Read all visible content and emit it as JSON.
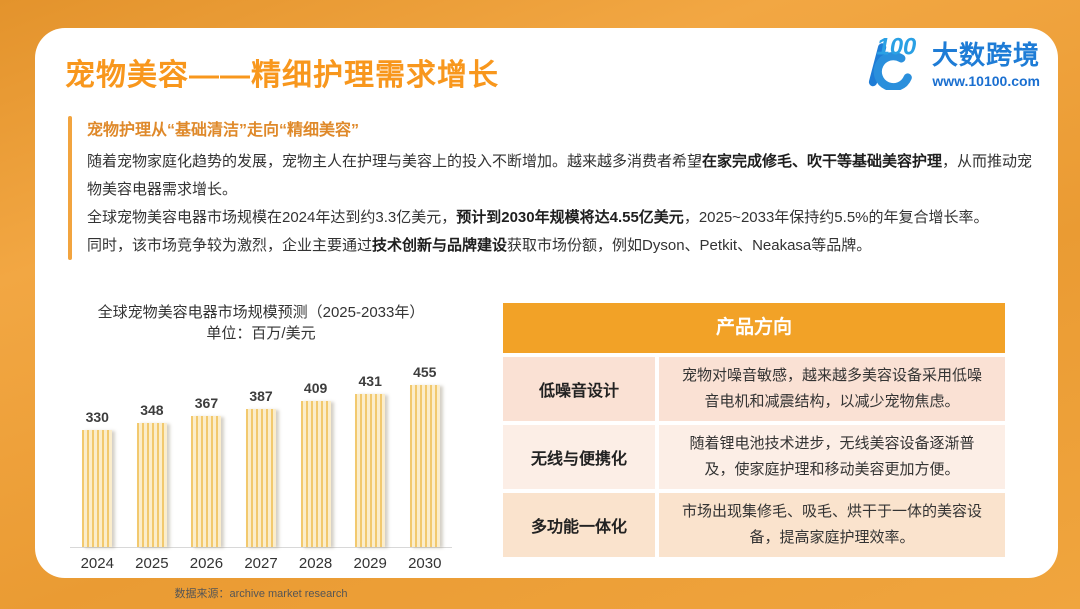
{
  "page": {
    "title": "宠物美容——精细护理需求增长"
  },
  "logo": {
    "glyph": "10100-logo",
    "brand": "大数跨境",
    "url": "www.10100.com",
    "brand_color": "#1e7cd6",
    "glyph_light_color": "#2aa0e4"
  },
  "intro": {
    "subtitle": "宠物护理从“基础清洁”走向“精细美容”",
    "paragraphs": [
      {
        "segments": [
          {
            "text": "随着宠物家庭化趋势的发展，宠物主人在护理与美容上的投入不断增加。越来越多消费者希望",
            "bold": false
          },
          {
            "text": "在家完成修毛、吹干等基础美容护理",
            "bold": true
          },
          {
            "text": "，从而推动宠物美容电器需求增长。",
            "bold": false
          }
        ]
      },
      {
        "segments": [
          {
            "text": "全球宠物美容电器市场规模在2024年达到约3.3亿美元，",
            "bold": false
          },
          {
            "text": "预计到2030年规模将达4.55亿美元",
            "bold": true
          },
          {
            "text": "，2025~2033年保持约5.5%的年复合增长率。",
            "bold": false
          }
        ]
      },
      {
        "segments": [
          {
            "text": "同时，该市场竞争较为激烈，企业主要通过",
            "bold": false
          },
          {
            "text": "技术创新与品牌建设",
            "bold": true
          },
          {
            "text": "获取市场份额，例如Dyson、Petkit、Neakasa等品牌。",
            "bold": false
          }
        ]
      }
    ]
  },
  "chart_data": {
    "type": "bar",
    "title": "全球宠物美容电器市场规模预测（2025-2033年）",
    "subtitle": "单位：百万/美元",
    "categories": [
      "2024",
      "2025",
      "2026",
      "2027",
      "2028",
      "2029",
      "2030"
    ],
    "values": [
      330,
      348,
      367,
      387,
      409,
      431,
      455
    ],
    "ylim": [
      0,
      480
    ],
    "grid": false,
    "legend": "none",
    "bar_color": "#f2c96e",
    "bar_stripe_color": "#fbedcb",
    "source": "数据来源：archive market research"
  },
  "table": {
    "header": "产品方向",
    "header_bg": "#f2a227",
    "rows": [
      {
        "label": "低噪音设计",
        "desc": "宠物对噪音敏感，越来越多美容设备采用低噪音电机和减震结构，以减少宠物焦虑。",
        "bg": "#fae1d4"
      },
      {
        "label": "无线与便携化",
        "desc": "随着锂电池技术进步，无线美容设备逐渐普及，使家庭护理和移动美容更加方便。",
        "bg": "#fceee6"
      },
      {
        "label": "多功能一体化",
        "desc": "市场出现集修毛、吸毛、烘干于一体的美容设备，提高家庭护理效率。",
        "bg": "#fae3cd"
      }
    ]
  },
  "colors": {
    "frame_orange": "#eb9d35",
    "title_orange": "#f8971d",
    "subtitle_orange": "#df892a",
    "accent_bar": "#f2a43f",
    "body_text": "#333333"
  }
}
